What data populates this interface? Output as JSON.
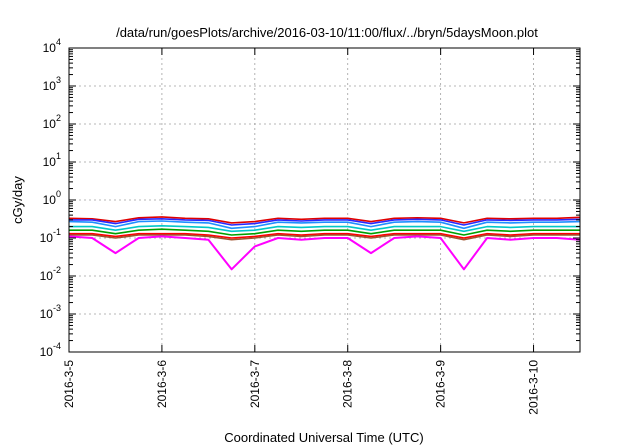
{
  "chart_data": {
    "type": "line",
    "title": "/data/run/goesPlots/archive/2016-03-10/11:00/flux/../bryn/5daysMoon.plot",
    "xlabel": "Coordinated Universal Time (UTC)",
    "ylabel": "cGy/day",
    "yscale": "log",
    "ylim": [
      0.0001,
      10000
    ],
    "xlim": [
      "2016-03-05T00:00",
      "2016-03-10T12:00"
    ],
    "grid": true,
    "x_ticks": [
      "2016-03-05",
      "2016-03-06",
      "2016-03-07",
      "2016-03-08",
      "2016-03-09",
      "2016-03-10"
    ],
    "x_tick_labels": [
      "2016-3-5",
      "2016-3-6",
      "2016-3-7",
      "2016-3-8",
      "2016-3-9",
      "2016-3-10"
    ],
    "y_ticks": [
      {
        "base": "10",
        "exp": "-4",
        "value": 0.0001
      },
      {
        "base": "10",
        "exp": "-3",
        "value": 0.001
      },
      {
        "base": "10",
        "exp": "-2",
        "value": 0.01
      },
      {
        "base": "10",
        "exp": "-1",
        "value": 0.1
      },
      {
        "base": "10",
        "exp": "0",
        "value": 1
      },
      {
        "base": "10",
        "exp": "1",
        "value": 10
      },
      {
        "base": "10",
        "exp": "2",
        "value": 100
      },
      {
        "base": "10",
        "exp": "3",
        "value": 1000
      },
      {
        "base": "10",
        "exp": "4",
        "value": 10000
      }
    ],
    "sample_days": [
      0,
      0.25,
      0.5,
      0.75,
      1,
      1.25,
      1.5,
      1.75,
      2,
      2.25,
      2.5,
      2.75,
      3,
      3.25,
      3.5,
      3.75,
      4,
      4.25,
      4.5,
      4.75,
      5,
      5.25,
      5.5
    ],
    "series": [
      {
        "color": "#ff00ff",
        "values": [
          0.11,
          0.1,
          0.04,
          0.1,
          0.11,
          0.1,
          0.09,
          0.015,
          0.06,
          0.1,
          0.09,
          0.1,
          0.1,
          0.04,
          0.1,
          0.11,
          0.1,
          0.015,
          0.1,
          0.09,
          0.1,
          0.1,
          0.09
        ]
      },
      {
        "color": "#a0522d",
        "values": [
          0.12,
          0.12,
          0.1,
          0.12,
          0.12,
          0.12,
          0.11,
          0.09,
          0.1,
          0.12,
          0.11,
          0.12,
          0.12,
          0.1,
          0.12,
          0.12,
          0.12,
          0.09,
          0.12,
          0.11,
          0.12,
          0.12,
          0.12
        ]
      },
      {
        "color": "#ff0000",
        "values": [
          0.13,
          0.13,
          0.11,
          0.13,
          0.13,
          0.13,
          0.12,
          0.1,
          0.11,
          0.13,
          0.12,
          0.13,
          0.13,
          0.11,
          0.13,
          0.13,
          0.13,
          0.1,
          0.13,
          0.12,
          0.13,
          0.13,
          0.13
        ]
      },
      {
        "color": "#00a000",
        "values": [
          0.16,
          0.16,
          0.13,
          0.16,
          0.17,
          0.16,
          0.15,
          0.12,
          0.13,
          0.16,
          0.15,
          0.16,
          0.16,
          0.13,
          0.16,
          0.16,
          0.16,
          0.12,
          0.16,
          0.15,
          0.16,
          0.16,
          0.16
        ]
      },
      {
        "color": "#00c8c8",
        "values": [
          0.2,
          0.2,
          0.16,
          0.2,
          0.21,
          0.2,
          0.19,
          0.15,
          0.16,
          0.2,
          0.19,
          0.2,
          0.2,
          0.16,
          0.2,
          0.2,
          0.2,
          0.15,
          0.2,
          0.19,
          0.2,
          0.2,
          0.2
        ]
      },
      {
        "color": "#1e90ff",
        "values": [
          0.27,
          0.26,
          0.2,
          0.27,
          0.28,
          0.26,
          0.25,
          0.18,
          0.2,
          0.26,
          0.25,
          0.26,
          0.26,
          0.2,
          0.26,
          0.27,
          0.26,
          0.18,
          0.26,
          0.25,
          0.26,
          0.26,
          0.27
        ]
      },
      {
        "color": "#2828ff",
        "values": [
          0.3,
          0.3,
          0.24,
          0.31,
          0.32,
          0.3,
          0.29,
          0.22,
          0.24,
          0.3,
          0.28,
          0.3,
          0.3,
          0.24,
          0.3,
          0.31,
          0.3,
          0.22,
          0.3,
          0.29,
          0.3,
          0.3,
          0.31
        ]
      },
      {
        "color": "#e00000",
        "values": [
          0.33,
          0.32,
          0.27,
          0.34,
          0.36,
          0.33,
          0.32,
          0.25,
          0.27,
          0.33,
          0.31,
          0.33,
          0.33,
          0.27,
          0.33,
          0.34,
          0.33,
          0.25,
          0.33,
          0.32,
          0.33,
          0.33,
          0.35
        ]
      }
    ]
  }
}
